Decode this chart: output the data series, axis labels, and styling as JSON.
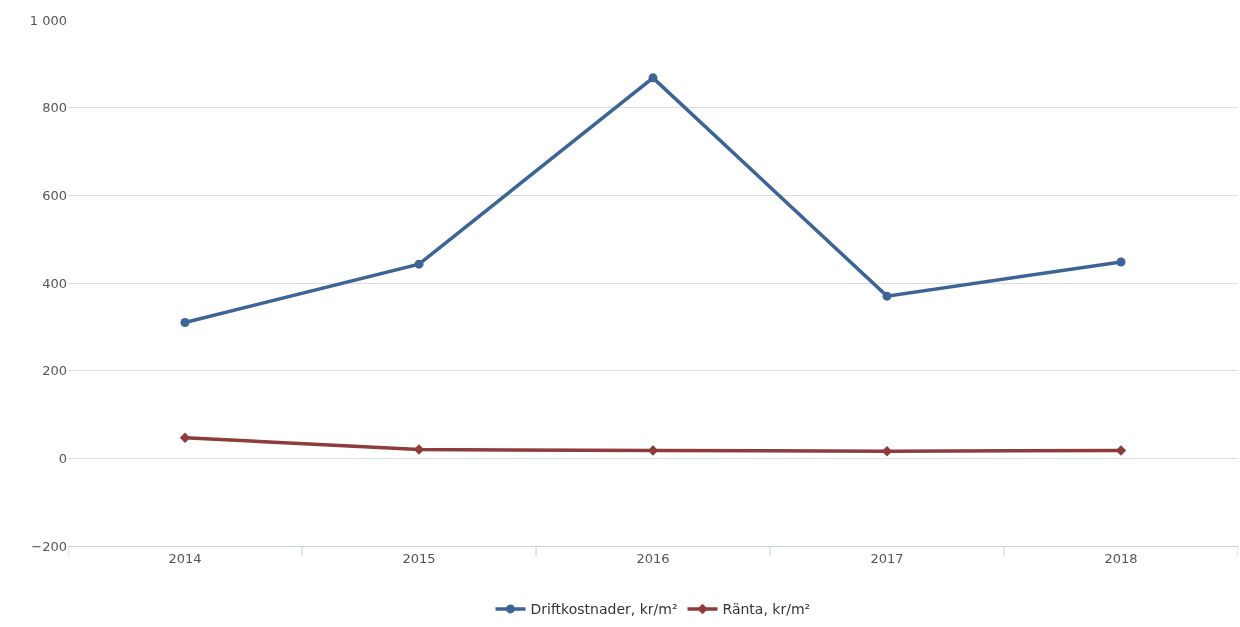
{
  "chart_data": {
    "type": "line",
    "categories": [
      "2014",
      "2015",
      "2016",
      "2017",
      "2018"
    ],
    "series": [
      {
        "name": "Driftkostnader, kr/m²",
        "color": "#3d6496",
        "marker": "circle",
        "values": [
          310,
          443,
          868,
          370,
          448
        ]
      },
      {
        "name": "Ränta, kr/m²",
        "color": "#8e3b3b",
        "marker": "diamond",
        "values": [
          47,
          20,
          18,
          16,
          18
        ]
      }
    ],
    "ylim": [
      -200,
      1000
    ],
    "yticks": [
      -200,
      0,
      200,
      400,
      600,
      800,
      {
        "value": 1000,
        "label": "1 000"
      }
    ],
    "grid": "y",
    "legend": "bottom",
    "line_style": "solid"
  }
}
